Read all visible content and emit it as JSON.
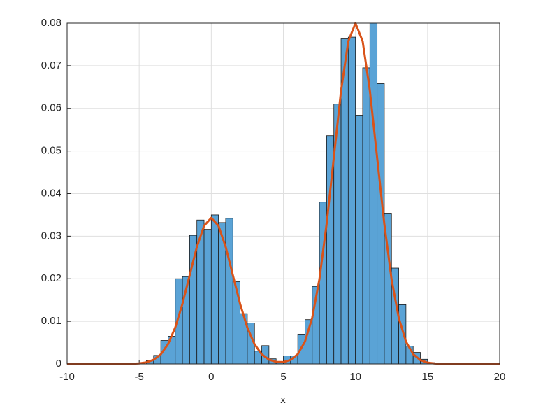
{
  "chart_data": {
    "type": "histogram",
    "xlabel": "x",
    "bins": [
      -4.5,
      -4,
      -3.5,
      -3,
      -2.5,
      -2,
      -1.5,
      -1,
      -0.5,
      0,
      0.5,
      1,
      1.5,
      2,
      2.5,
      3,
      3.5,
      4,
      4.5,
      5,
      5.5,
      6,
      6.5,
      7,
      7.5,
      8,
      8.5,
      9,
      9.5,
      10,
      10.5,
      11,
      11.5,
      12,
      12.5,
      13,
      13.5,
      14,
      14.5,
      15,
      15.5
    ],
    "values": [
      0.0008,
      0.002,
      0.0055,
      0.0065,
      0.02,
      0.0205,
      0.0302,
      0.0338,
      0.0316,
      0.035,
      0.0332,
      0.0342,
      0.0193,
      0.0118,
      0.0096,
      0.003,
      0.0043,
      0.0012,
      0.0005,
      0.0019,
      0.0019,
      0.007,
      0.0104,
      0.0182,
      0.038,
      0.0536,
      0.061,
      0.0763,
      0.0767,
      0.0584,
      0.0695,
      0.08,
      0.0658,
      0.0354,
      0.0225,
      0.0139,
      0.0042,
      0.0027,
      0.0011,
      0.0003
    ],
    "color": "#5aa3d6",
    "curve": {
      "type": "line",
      "color": "#d95319",
      "x": [
        -10,
        -9.5,
        -9,
        -8.5,
        -8,
        -7.5,
        -7,
        -6.5,
        -6,
        -5.5,
        -5,
        -4.5,
        -4,
        -3.5,
        -3,
        -2.5,
        -2,
        -1.5,
        -1,
        -0.5,
        0,
        0.5,
        1,
        1.5,
        2,
        2.5,
        3,
        3.5,
        4,
        4.5,
        5,
        5.5,
        6,
        6.5,
        7,
        7.5,
        8,
        8.5,
        9,
        9.5,
        10,
        10.5,
        11,
        11.5,
        12,
        12.5,
        13,
        13.5,
        14,
        14.5,
        15,
        15.5,
        16,
        16.5,
        17,
        17.5,
        18,
        18.5,
        19,
        19.5,
        20
      ],
      "values": [
        0,
        0,
        0,
        0,
        0,
        0,
        0,
        0,
        1e-05,
        4e-05,
        0.00013,
        0.00038,
        0.00098,
        0.00225,
        0.00464,
        0.00854,
        0.0141,
        0.0208,
        0.02747,
        0.03245,
        0.0343,
        0.03245,
        0.02747,
        0.0208,
        0.0141,
        0.00854,
        0.00464,
        0.00226,
        0.00101,
        0.00048,
        0.00044,
        0.00093,
        0.0023,
        0.00526,
        0.01082,
        0.0199,
        0.0329,
        0.0485,
        0.0641,
        0.0757,
        0.08,
        0.0757,
        0.0641,
        0.0485,
        0.0329,
        0.0199,
        0.01082,
        0.00526,
        0.00229,
        0.00089,
        0.00031,
        0.0001,
        3e-05,
        1e-05,
        0,
        0,
        0,
        0,
        0,
        0,
        0
      ]
    },
    "xlim": [
      -10,
      20
    ],
    "ylim": [
      0,
      0.08
    ],
    "xticks": [
      -10,
      -5,
      0,
      5,
      10,
      15,
      20
    ],
    "yticks": [
      0,
      0.01,
      0.02,
      0.03,
      0.04,
      0.05,
      0.06,
      0.07,
      0.08
    ],
    "grid": true
  }
}
